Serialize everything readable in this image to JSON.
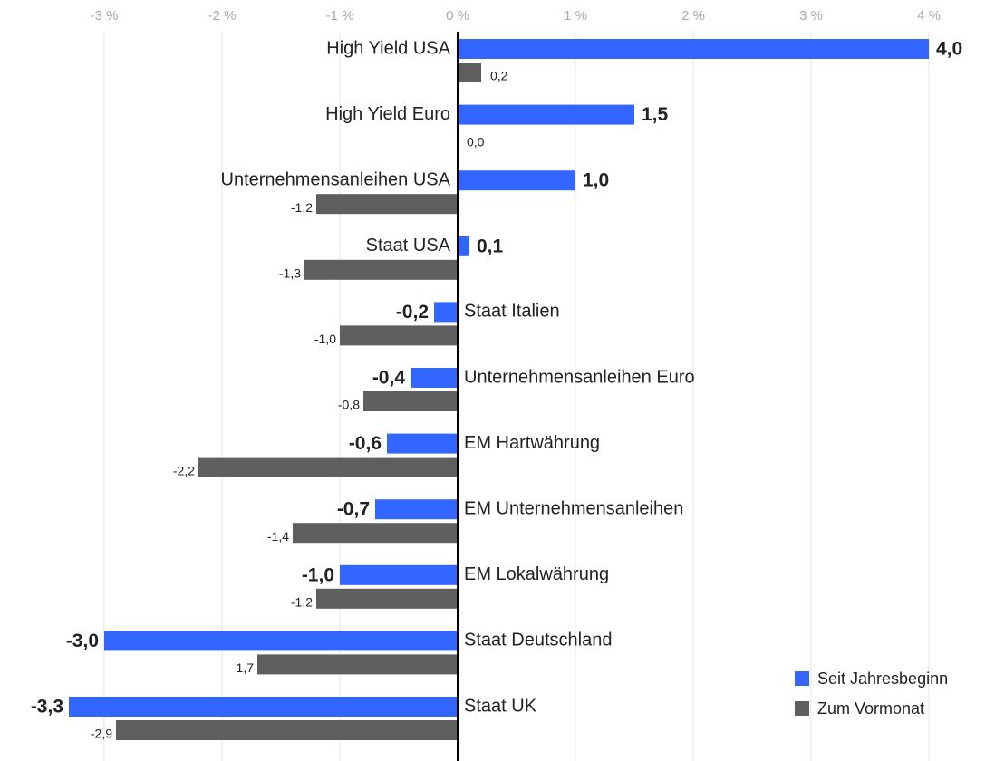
{
  "chart_data": {
    "type": "bar",
    "orientation": "horizontal",
    "categories": [
      "High Yield USA",
      "High Yield Euro",
      "Unternehmensanleihen USA",
      "Staat USA",
      "Staat Italien",
      "Unternehmensanleihen Euro",
      "EM Hartwährung",
      "EM Unternehmensanleihen",
      "EM Lokalwährung",
      "Staat Deutschland",
      "Staat UK"
    ],
    "series": [
      {
        "name": "Seit Jahresbeginn",
        "color": "#3366ff",
        "values": [
          4.0,
          1.5,
          1.0,
          0.1,
          -0.2,
          -0.4,
          -0.6,
          -0.7,
          -1.0,
          -3.0,
          -3.3
        ],
        "value_labels": [
          "4,0",
          "1,5",
          "1,0",
          "0,1",
          "-0,2",
          "-0,4",
          "-0,6",
          "-0,7",
          "-1,0",
          "-3,0",
          "-3,3"
        ]
      },
      {
        "name": "Zum Vormonat",
        "color": "#5f5f5f",
        "values": [
          0.2,
          0.0,
          -1.2,
          -1.3,
          -1.0,
          -0.8,
          -2.2,
          -1.4,
          -1.2,
          -1.7,
          -2.9
        ],
        "value_labels": [
          "0,2",
          "0,0",
          "-1,2",
          "-1,3",
          "-1,0",
          "-0,8",
          "-2,2",
          "-1,4",
          "-1,2",
          "-1,7",
          "-2,9"
        ]
      }
    ],
    "xlim": [
      -3.5,
      4.3
    ],
    "xticks": [
      {
        "value": -3,
        "label": "-3 %"
      },
      {
        "value": -2,
        "label": "-2 %"
      },
      {
        "value": -1,
        "label": "-1 %"
      },
      {
        "value": 0,
        "label": "0 %"
      },
      {
        "value": 1,
        "label": "1 %"
      },
      {
        "value": 2,
        "label": "2 %"
      },
      {
        "value": 3,
        "label": "3 %"
      },
      {
        "value": 4,
        "label": "4 %"
      }
    ],
    "grid": true,
    "legend": "lower right"
  }
}
